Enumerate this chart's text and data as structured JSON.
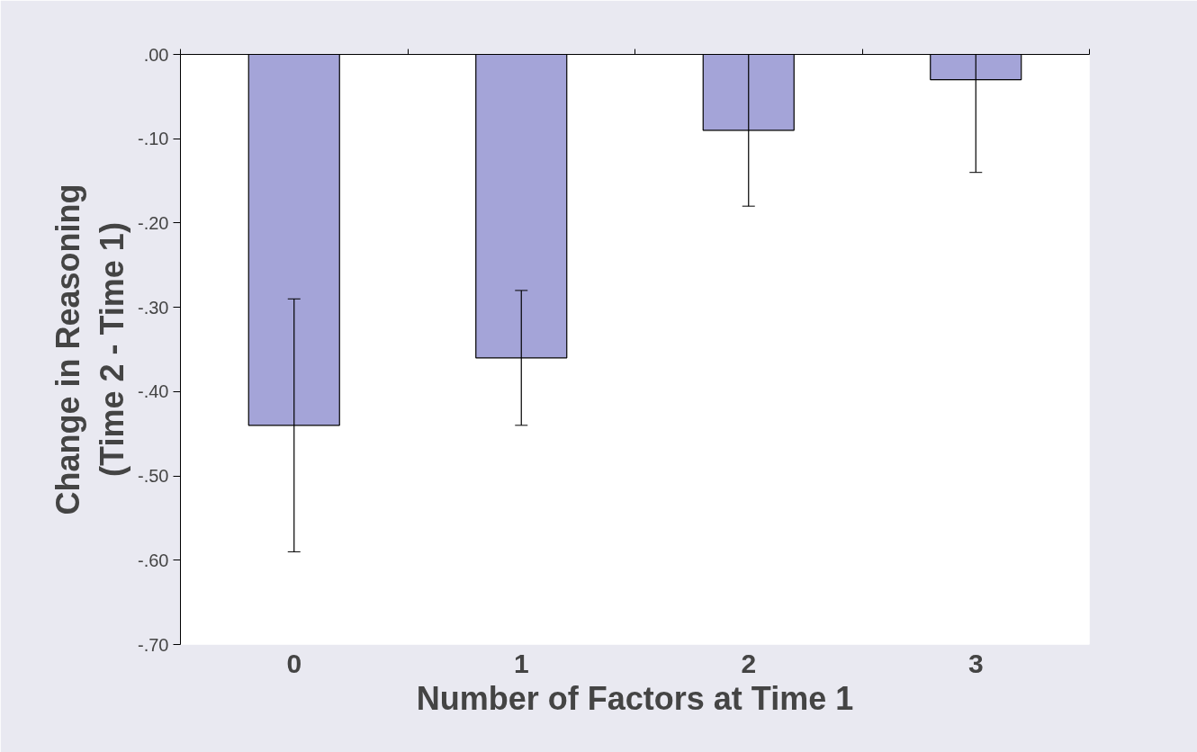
{
  "chart_data": {
    "type": "bar",
    "xlabel": "Number of Factors at Time 1",
    "ylabel": "Change in Reasoning\n(Time 2 - Time 1)",
    "categories": [
      "0",
      "1",
      "2",
      "3"
    ],
    "values": [
      -0.44,
      -0.36,
      -0.09,
      -0.03
    ],
    "errors": [
      0.15,
      0.08,
      0.09,
      0.11
    ],
    "color": "#a4a4d8",
    "ylim": [
      -0.7,
      0
    ],
    "yticks": [
      {
        "value": -0.7,
        "label": "-.70"
      },
      {
        "value": -0.6,
        "label": "-.60"
      },
      {
        "value": -0.5,
        "label": "-.50"
      },
      {
        "value": -0.4,
        "label": "-.40"
      },
      {
        "value": -0.3,
        "label": "-.30"
      },
      {
        "value": -0.2,
        "label": "-.20"
      },
      {
        "value": -0.1,
        "label": "-.10"
      },
      {
        "value": 0,
        "label": ".00"
      }
    ],
    "grid": false
  }
}
